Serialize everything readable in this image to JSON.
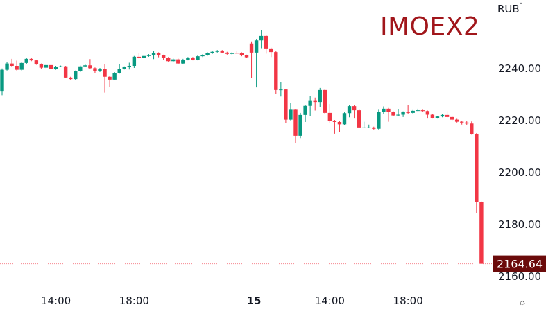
{
  "chart_data": {
    "type": "candlestick",
    "title": "IMOEX2",
    "currency": "RUB",
    "last_price": "2164.64",
    "ylim": [
      2155,
      2257
    ],
    "y_ticks": [
      "2160.00",
      "2180.00",
      "2200.00",
      "2220.00",
      "2240.00"
    ],
    "x_ticks": [
      {
        "label": "14:00",
        "bold": false,
        "candle": 11
      },
      {
        "label": "18:00",
        "bold": false,
        "candle": 27
      },
      {
        "label": "15",
        "bold": true,
        "candle": 51.5
      },
      {
        "label": "14:00",
        "bold": false,
        "candle": 67
      },
      {
        "label": "18:00",
        "bold": false,
        "candle": 83
      }
    ],
    "colors": {
      "up": "#089981",
      "down": "#f23645",
      "last_price_bg": "#6b0a0a",
      "title": "#a1161b"
    },
    "candles": [
      [
        2230.9,
        2239.8,
        2229.5,
        2239.3
      ],
      [
        2239.3,
        2242.2,
        2239.0,
        2241.7
      ],
      [
        2241.7,
        2243.5,
        2240.5,
        2240.8
      ],
      [
        2240.8,
        2242.8,
        2239.0,
        2239.3
      ],
      [
        2239.3,
        2242.2,
        2239.0,
        2241.9
      ],
      [
        2241.9,
        2243.8,
        2241.6,
        2243.5
      ],
      [
        2243.5,
        2243.9,
        2242.6,
        2242.9
      ],
      [
        2242.9,
        2243.0,
        2241.2,
        2241.5
      ],
      [
        2241.5,
        2241.7,
        2239.6,
        2240.1
      ],
      [
        2240.1,
        2241.4,
        2239.5,
        2241.1
      ],
      [
        2241.1,
        2242.9,
        2239.4,
        2239.7
      ],
      [
        2239.7,
        2240.8,
        2239.3,
        2240.5
      ],
      [
        2240.5,
        2240.9,
        2240.3,
        2240.6
      ],
      [
        2240.6,
        2240.8,
        2236.0,
        2236.3
      ],
      [
        2236.3,
        2236.6,
        2235.4,
        2235.7
      ],
      [
        2235.7,
        2239.0,
        2235.4,
        2238.7
      ],
      [
        2238.7,
        2240.9,
        2238.4,
        2240.6
      ],
      [
        2240.6,
        2241.3,
        2240.3,
        2241.0
      ],
      [
        2241.0,
        2243.4,
        2239.6,
        2239.9
      ],
      [
        2239.9,
        2240.2,
        2238.1,
        2238.7
      ],
      [
        2238.7,
        2240.0,
        2238.4,
        2239.7
      ],
      [
        2239.7,
        2241.6,
        2230.5,
        2236.6
      ],
      [
        2236.6,
        2236.9,
        2232.8,
        2235.5
      ],
      [
        2235.5,
        2238.4,
        2235.2,
        2238.1
      ],
      [
        2238.1,
        2241.6,
        2237.8,
        2239.7
      ],
      [
        2239.7,
        2240.6,
        2239.4,
        2240.3
      ],
      [
        2240.3,
        2242.0,
        2239.4,
        2240.8
      ],
      [
        2240.8,
        2244.6,
        2240.0,
        2244.3
      ],
      [
        2244.3,
        2245.8,
        2243.6,
        2243.9
      ],
      [
        2243.9,
        2244.9,
        2243.6,
        2244.6
      ],
      [
        2244.6,
        2245.3,
        2244.3,
        2245.0
      ],
      [
        2245.0,
        2246.5,
        2243.4,
        2245.7
      ],
      [
        2245.7,
        2246.0,
        2244.1,
        2244.8
      ],
      [
        2244.8,
        2245.1,
        2243.0,
        2243.9
      ],
      [
        2243.9,
        2244.2,
        2242.3,
        2242.6
      ],
      [
        2242.6,
        2243.6,
        2242.3,
        2243.3
      ],
      [
        2243.3,
        2243.6,
        2241.4,
        2241.7
      ],
      [
        2241.7,
        2243.5,
        2241.4,
        2243.2
      ],
      [
        2243.2,
        2244.2,
        2242.9,
        2243.9
      ],
      [
        2243.9,
        2244.2,
        2242.9,
        2243.2
      ],
      [
        2243.2,
        2244.8,
        2242.9,
        2244.5
      ],
      [
        2244.5,
        2245.3,
        2244.2,
        2245.0
      ],
      [
        2245.0,
        2246.0,
        2244.7,
        2245.7
      ],
      [
        2245.7,
        2246.5,
        2245.4,
        2246.2
      ],
      [
        2246.2,
        2246.9,
        2245.9,
        2246.6
      ],
      [
        2246.6,
        2246.9,
        2245.6,
        2245.9
      ],
      [
        2245.9,
        2246.2,
        2245.1,
        2245.4
      ],
      [
        2245.4,
        2246.1,
        2245.1,
        2245.8
      ],
      [
        2245.8,
        2246.5,
        2245.4,
        2245.7
      ],
      [
        2245.7,
        2246.0,
        2244.5,
        2244.8
      ],
      [
        2244.8,
        2245.1,
        2243.8,
        2244.1
      ],
      [
        2249.4,
        2250.2,
        2236.0,
        2245.9
      ],
      [
        2245.9,
        2250.9,
        2232.5,
        2250.6
      ],
      [
        2250.6,
        2254.4,
        2247.6,
        2252.3
      ],
      [
        2252.3,
        2252.6,
        2245.5,
        2247.5
      ],
      [
        2247.5,
        2247.8,
        2244.2,
        2246.1
      ],
      [
        2246.1,
        2246.4,
        2230.0,
        2231.5
      ],
      [
        2231.5,
        2234.4,
        2229.0,
        2231.7
      ],
      [
        2231.7,
        2232.0,
        2218.8,
        2220.1
      ],
      [
        2220.1,
        2226.6,
        2219.8,
        2223.9
      ],
      [
        2223.9,
        2224.2,
        2211.2,
        2213.9
      ],
      [
        2213.9,
        2222.7,
        2213.0,
        2221.9
      ],
      [
        2221.9,
        2225.7,
        2219.2,
        2225.4
      ],
      [
        2225.4,
        2229.3,
        2221.4,
        2227.3
      ],
      [
        2227.3,
        2228.6,
        2223.6,
        2226.9
      ],
      [
        2226.9,
        2232.3,
        2225.0,
        2231.5
      ],
      [
        2231.5,
        2231.8,
        2222.4,
        2222.7
      ],
      [
        2222.7,
        2226.1,
        2218.8,
        2219.7
      ],
      [
        2219.7,
        2220.0,
        2214.7,
        2219.2
      ],
      [
        2219.2,
        2219.5,
        2215.3,
        2218.3
      ],
      [
        2218.3,
        2222.9,
        2218.0,
        2222.6
      ],
      [
        2222.6,
        2225.7,
        2221.0,
        2225.3
      ],
      [
        2225.3,
        2225.6,
        2220.5,
        2223.7
      ],
      [
        2223.7,
        2224.0,
        2216.8,
        2217.1
      ],
      [
        2217.1,
        2219.3,
        2216.8,
        2217.1
      ],
      [
        2217.1,
        2218.2,
        2216.8,
        2217.1
      ],
      [
        2217.1,
        2217.4,
        2216.3,
        2216.6
      ],
      [
        2216.6,
        2223.9,
        2216.3,
        2223.0
      ],
      [
        2223.0,
        2225.2,
        2222.4,
        2224.3
      ],
      [
        2224.3,
        2224.6,
        2219.3,
        2223.0
      ],
      [
        2223.0,
        2223.3,
        2221.4,
        2221.7
      ],
      [
        2221.7,
        2224.0,
        2221.4,
        2222.0
      ],
      [
        2222.0,
        2223.3,
        2221.1,
        2223.0
      ],
      [
        2223.0,
        2225.6,
        2222.4,
        2222.7
      ],
      [
        2222.7,
        2223.8,
        2222.4,
        2223.5
      ],
      [
        2223.5,
        2224.3,
        2223.4,
        2223.7
      ],
      [
        2223.7,
        2223.9,
        2223.1,
        2223.4
      ],
      [
        2223.4,
        2223.6,
        2220.5,
        2222.0
      ],
      [
        2222.0,
        2222.3,
        2220.5,
        2220.8
      ],
      [
        2220.8,
        2221.6,
        2220.5,
        2221.3
      ],
      [
        2221.3,
        2222.2,
        2221.0,
        2221.9
      ],
      [
        2221.9,
        2223.4,
        2220.8,
        2221.1
      ],
      [
        2221.1,
        2221.4,
        2219.8,
        2220.1
      ],
      [
        2220.1,
        2220.4,
        2219.0,
        2219.3
      ],
      [
        2219.3,
        2219.6,
        2218.2,
        2219.0
      ],
      [
        2219.0,
        2219.7,
        2217.9,
        2218.6
      ],
      [
        2218.6,
        2219.4,
        2214.3,
        2214.6
      ],
      [
        2214.6,
        2214.9,
        2184.0,
        2188.3
      ],
      [
        2188.3,
        2188.6,
        2164.64,
        2164.64
      ]
    ]
  }
}
